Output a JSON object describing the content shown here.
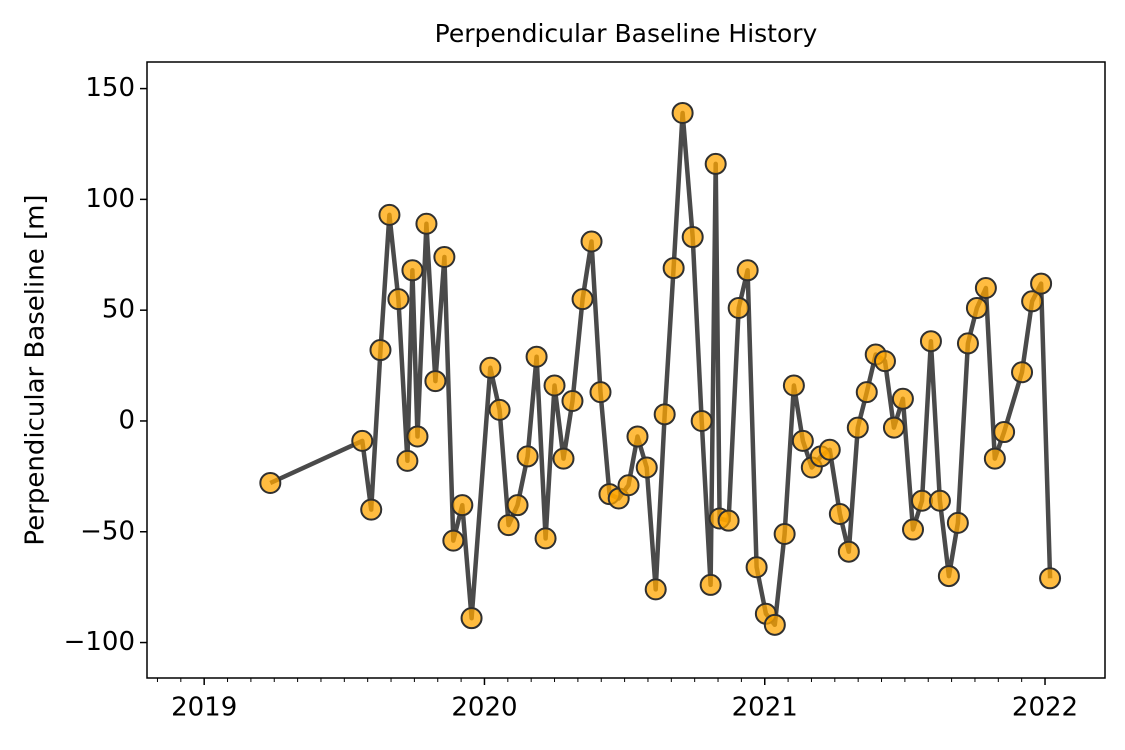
{
  "chart_data": {
    "type": "line",
    "title": "Perpendicular Baseline History",
    "y_label": "Perpendicular Baseline [m]",
    "x": [
      2019.236,
      2019.564,
      2019.596,
      2019.629,
      2019.661,
      2019.693,
      2019.725,
      2019.743,
      2019.761,
      2019.793,
      2019.825,
      2019.857,
      2019.889,
      2019.921,
      2019.954,
      2020.021,
      2020.054,
      2020.086,
      2020.118,
      2020.154,
      2020.186,
      2020.218,
      2020.25,
      2020.282,
      2020.314,
      2020.35,
      2020.382,
      2020.414,
      2020.446,
      2020.479,
      2020.514,
      2020.546,
      2020.579,
      2020.611,
      2020.643,
      2020.675,
      2020.707,
      2020.743,
      2020.775,
      2020.807,
      2020.825,
      2020.839,
      2020.871,
      2020.907,
      2020.939,
      2020.971,
      2021.004,
      2021.036,
      2021.071,
      2021.104,
      2021.136,
      2021.168,
      2021.2,
      2021.232,
      2021.268,
      2021.3,
      2021.332,
      2021.364,
      2021.396,
      2021.429,
      2021.461,
      2021.493,
      2021.529,
      2021.561,
      2021.593,
      2021.625,
      2021.657,
      2021.689,
      2021.725,
      2021.757,
      2021.789,
      2021.821,
      2021.854,
      2021.918,
      2021.954,
      2021.986,
      2022.018
    ],
    "values": [
      -28,
      -9,
      -40,
      32,
      93,
      55,
      -18,
      68,
      -7,
      89,
      18,
      74,
      -54,
      -38,
      -89,
      24,
      5,
      -47,
      -38,
      -16,
      29,
      -53,
      16,
      -17,
      9,
      55,
      81,
      13,
      -33,
      -35,
      -29,
      -7,
      -21,
      -76,
      3,
      69,
      139,
      83,
      0,
      -74,
      116,
      -44,
      -45,
      51,
      68,
      -66,
      -87,
      -92,
      -51,
      16,
      -9,
      -21,
      -16,
      -13,
      -42,
      -59,
      -3,
      13,
      30,
      27,
      -3,
      10,
      -49,
      -36,
      36,
      -36,
      -70,
      -46,
      35,
      51,
      60,
      -17,
      -5,
      22,
      54,
      62,
      -71
    ],
    "line_color": "#404040",
    "marker_color": "#ffa500",
    "marker_edge_color": "#303030",
    "xlim": [
      2018.796,
      2022.214
    ],
    "xticks": [
      2019,
      2020,
      2021,
      2022
    ],
    "ylim": [
      -116,
      162
    ],
    "yticks": [
      {
        "value": -100,
        "label": "−100"
      },
      {
        "value": -50,
        "label": "−50"
      },
      0,
      50,
      100,
      150
    ]
  }
}
